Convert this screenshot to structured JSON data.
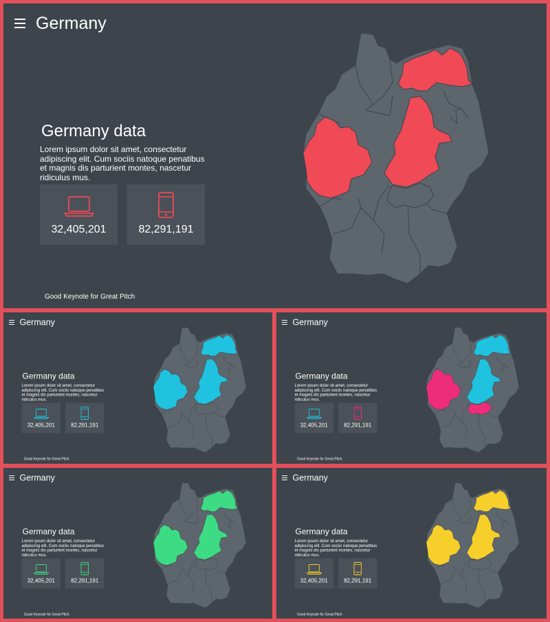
{
  "slide": {
    "title": "Germany",
    "subtitle": "Germany data",
    "description": "Lorem ipsum dolor sit amet, consectetur adipiscing elit. Cum sociis natoque penatibus et magnis dis parturient montes, nascetur ridiculus mus.",
    "stat_laptop": "32,405,201",
    "stat_phone": "82,291,191",
    "footer": "Good Keynote for Great Pitch",
    "menu_icon": "hamburger-icon",
    "laptop_icon": "laptop-icon",
    "phone_icon": "smartphone-icon",
    "map_base_color": "#5d656d"
  },
  "variants": [
    {
      "id": "main",
      "highlight": "#ef4a56",
      "icon_colors": [
        "#ef4a56",
        "#ef4a56"
      ],
      "regions": {
        "west": "#ef4a56",
        "north_east": "#ef4a56",
        "center": "#ef4a56",
        "thuringia": null
      }
    },
    {
      "id": "cyan",
      "highlight": "#1fc3df",
      "icon_colors": [
        "#1fc3df",
        "#1fc3df"
      ],
      "regions": {
        "west": "#1fc3df",
        "north_east": "#1fc3df",
        "center": "#1fc3df",
        "thuringia": null
      }
    },
    {
      "id": "mixed",
      "highlight": "#1fc3df",
      "icon_colors": [
        "#1fc3df",
        "#ee2d7a"
      ],
      "regions": {
        "west": "#ee2d7a",
        "north_east": "#1fc3df",
        "center": "#1fc3df",
        "thuringia": "#ee2d7a"
      }
    },
    {
      "id": "green",
      "highlight": "#3ddc84",
      "icon_colors": [
        "#3ddc84",
        "#3ddc84"
      ],
      "regions": {
        "west": "#3ddc84",
        "north_east": "#3ddc84",
        "center": "#3ddc84",
        "thuringia": null
      }
    },
    {
      "id": "yellow",
      "highlight": "#f7cf2b",
      "icon_colors": [
        "#f7cf2b",
        "#f7cf2b"
      ],
      "regions": {
        "west": "#f7cf2b",
        "north_east": "#f7cf2b",
        "center": "#f7cf2b",
        "thuringia": null
      }
    }
  ]
}
